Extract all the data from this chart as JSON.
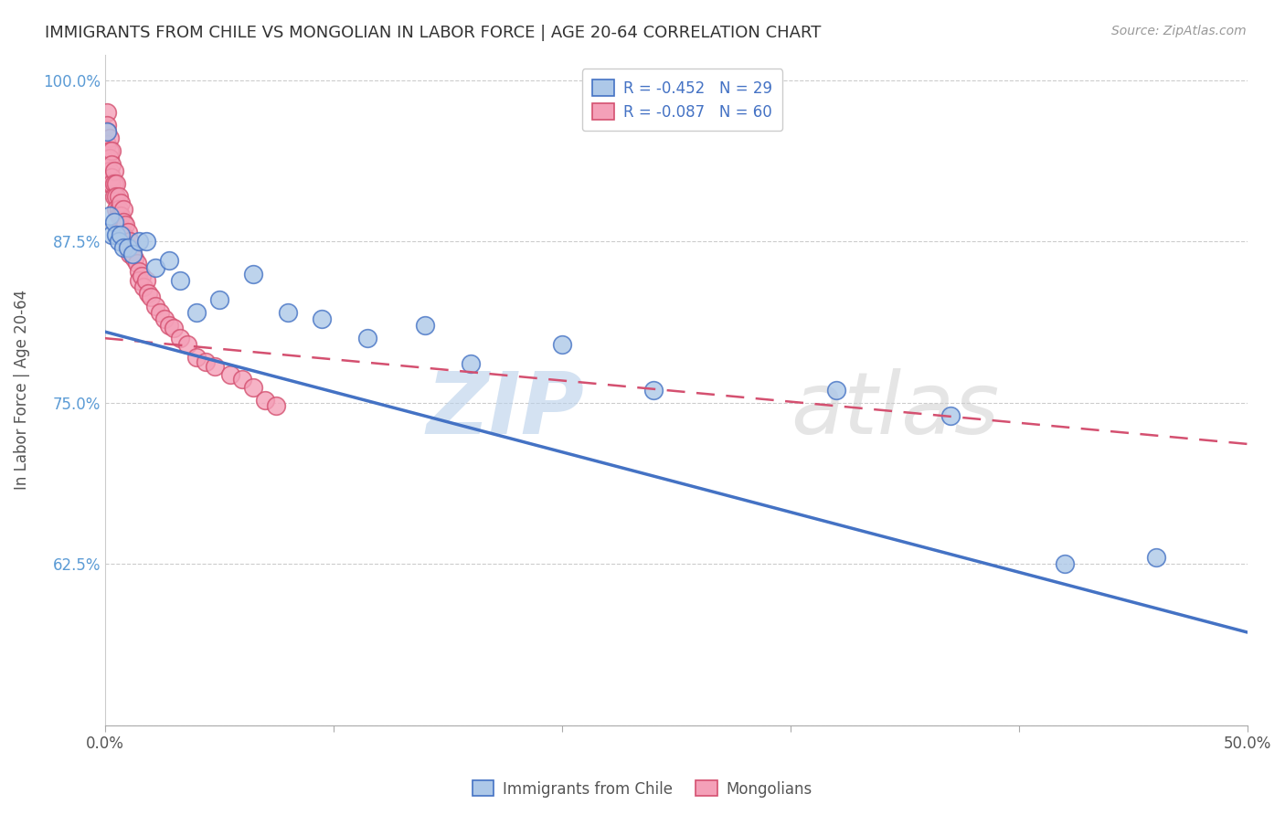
{
  "title": "IMMIGRANTS FROM CHILE VS MONGOLIAN IN LABOR FORCE | AGE 20-64 CORRELATION CHART",
  "source": "Source: ZipAtlas.com",
  "ylabel": "In Labor Force | Age 20-64",
  "xlim": [
    0.0,
    0.5
  ],
  "ylim": [
    0.5,
    1.02
  ],
  "xtick_positions": [
    0.0,
    0.1,
    0.2,
    0.3,
    0.4,
    0.5
  ],
  "xtick_labels": [
    "0.0%",
    "",
    "",
    "",
    "",
    "50.0%"
  ],
  "ytick_positions": [
    0.5,
    0.625,
    0.75,
    0.875,
    1.0
  ],
  "ytick_labels": [
    "",
    "62.5%",
    "75.0%",
    "87.5%",
    "100.0%"
  ],
  "chile_R": "-0.452",
  "chile_N": "29",
  "mongolian_R": "-0.087",
  "mongolian_N": "60",
  "chile_color": "#adc8e8",
  "chile_line_color": "#4472c4",
  "mongolian_color": "#f4a0b8",
  "mongolian_line_color": "#d45070",
  "chile_line_x0": 0.0,
  "chile_line_y0": 0.805,
  "chile_line_x1": 0.5,
  "chile_line_y1": 0.572,
  "mongolian_line_x0": 0.0,
  "mongolian_line_y0": 0.8,
  "mongolian_line_x1": 0.5,
  "mongolian_line_y1": 0.718,
  "chile_points_x": [
    0.001,
    0.002,
    0.003,
    0.004,
    0.005,
    0.006,
    0.007,
    0.008,
    0.01,
    0.012,
    0.015,
    0.018,
    0.022,
    0.028,
    0.033,
    0.04,
    0.05,
    0.065,
    0.08,
    0.095,
    0.115,
    0.14,
    0.16,
    0.2,
    0.24,
    0.32,
    0.37,
    0.42,
    0.46
  ],
  "chile_points_y": [
    0.96,
    0.895,
    0.88,
    0.89,
    0.88,
    0.875,
    0.88,
    0.87,
    0.87,
    0.865,
    0.875,
    0.875,
    0.855,
    0.86,
    0.845,
    0.82,
    0.83,
    0.85,
    0.82,
    0.815,
    0.8,
    0.81,
    0.78,
    0.795,
    0.76,
    0.76,
    0.74,
    0.625,
    0.63
  ],
  "mongolian_points_x": [
    0.001,
    0.001,
    0.001,
    0.001,
    0.001,
    0.002,
    0.002,
    0.002,
    0.002,
    0.002,
    0.003,
    0.003,
    0.003,
    0.003,
    0.004,
    0.004,
    0.004,
    0.005,
    0.005,
    0.005,
    0.006,
    0.006,
    0.006,
    0.007,
    0.007,
    0.007,
    0.008,
    0.008,
    0.008,
    0.009,
    0.009,
    0.01,
    0.01,
    0.011,
    0.011,
    0.012,
    0.013,
    0.014,
    0.015,
    0.015,
    0.016,
    0.017,
    0.018,
    0.019,
    0.02,
    0.022,
    0.024,
    0.026,
    0.028,
    0.03,
    0.033,
    0.036,
    0.04,
    0.044,
    0.048,
    0.055,
    0.06,
    0.065,
    0.07,
    0.075
  ],
  "mongolian_points_y": [
    0.975,
    0.965,
    0.96,
    0.95,
    0.94,
    0.955,
    0.945,
    0.94,
    0.93,
    0.92,
    0.945,
    0.935,
    0.925,
    0.92,
    0.93,
    0.92,
    0.91,
    0.92,
    0.91,
    0.9,
    0.91,
    0.9,
    0.895,
    0.905,
    0.895,
    0.885,
    0.9,
    0.89,
    0.88,
    0.888,
    0.878,
    0.882,
    0.872,
    0.875,
    0.865,
    0.865,
    0.862,
    0.858,
    0.852,
    0.845,
    0.848,
    0.84,
    0.845,
    0.835,
    0.832,
    0.825,
    0.82,
    0.815,
    0.81,
    0.808,
    0.8,
    0.795,
    0.785,
    0.782,
    0.778,
    0.772,
    0.768,
    0.762,
    0.752,
    0.748
  ]
}
